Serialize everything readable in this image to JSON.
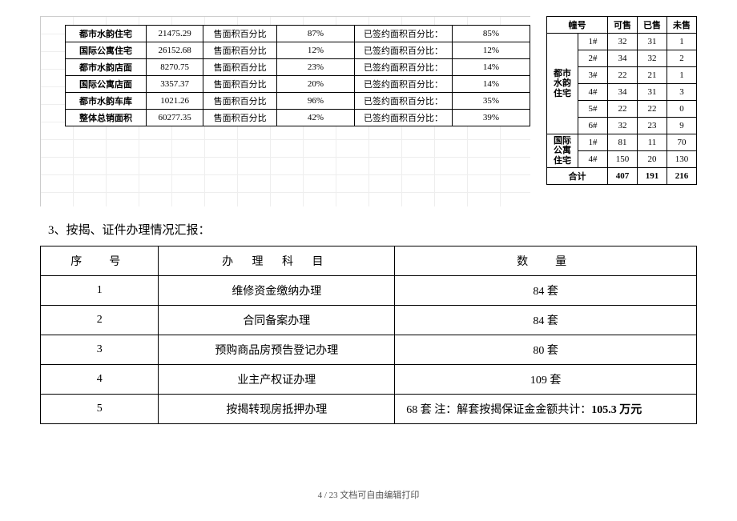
{
  "sales_table": {
    "col_label1": "售面积百分比",
    "col_label2": "已签约面积百分比：",
    "rows": [
      {
        "name": "都市水韵住宅",
        "area": "21475.29",
        "pct": "87%",
        "signed": "85%"
      },
      {
        "name": "国际公寓住宅",
        "area": "26152.68",
        "pct": "12%",
        "signed": "12%"
      },
      {
        "name": "都市水韵店面",
        "area": "8270.75",
        "pct": "23%",
        "signed": "14%"
      },
      {
        "name": "国际公寓店面",
        "area": "3357.37",
        "pct": "20%",
        "signed": "14%"
      },
      {
        "name": "都市水韵车库",
        "area": "1021.26",
        "pct": "96%",
        "signed": "35%"
      },
      {
        "name": "整体总销面积",
        "area": "60277.35",
        "pct": "42%",
        "signed": "39%"
      }
    ]
  },
  "units_table": {
    "headers": [
      "幢号",
      "可售",
      "已售",
      "未售"
    ],
    "groups": [
      {
        "group": "都市水韵住宅",
        "rows": [
          {
            "b": "1#",
            "a": "32",
            "s": "31",
            "u": "1"
          },
          {
            "b": "2#",
            "a": "34",
            "s": "32",
            "u": "2"
          },
          {
            "b": "3#",
            "a": "22",
            "s": "21",
            "u": "1"
          },
          {
            "b": "4#",
            "a": "34",
            "s": "31",
            "u": "3"
          },
          {
            "b": "5#",
            "a": "22",
            "s": "22",
            "u": "0"
          },
          {
            "b": "6#",
            "a": "32",
            "s": "23",
            "u": "9"
          }
        ]
      },
      {
        "group": "国际公寓住宅",
        "rows": [
          {
            "b": "1#",
            "a": "81",
            "s": "11",
            "u": "70"
          },
          {
            "b": "4#",
            "a": "150",
            "s": "20",
            "u": "130"
          }
        ]
      }
    ],
    "total": {
      "label": "合计",
      "a": "407",
      "s": "191",
      "u": "216"
    }
  },
  "section3": {
    "title": "3、按揭、证件办理情况汇报：",
    "headers": [
      "序　号",
      "办 理 科 目",
      "数　量"
    ],
    "rows": [
      {
        "n": "1",
        "item": "维修资金缴纳办理",
        "qty": "84 套"
      },
      {
        "n": "2",
        "item": "合同备案办理",
        "qty": "84 套"
      },
      {
        "n": "3",
        "item": "预购商品房预告登记办理",
        "qty": "80 套"
      },
      {
        "n": "4",
        "item": "业主产权证办理",
        "qty": "109 套"
      },
      {
        "n": "5",
        "item": "按揭转现房抵押办理",
        "qty_prefix": "68 套  注：解套按揭保证金金额共计：",
        "qty_bold": "105.3 万元"
      }
    ]
  },
  "footer": "4 / 23 文档可自由编辑打印"
}
